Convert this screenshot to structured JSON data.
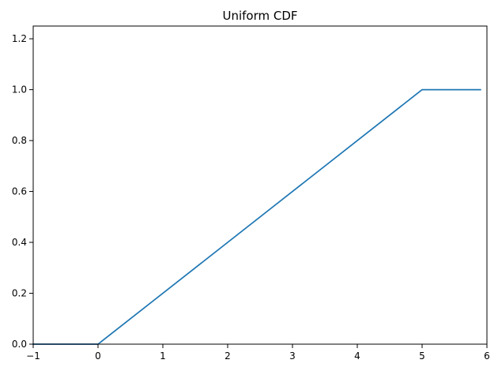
{
  "chart_data": {
    "type": "line",
    "title": "Uniform CDF",
    "xlabel": "",
    "ylabel": "",
    "xlim": [
      -1,
      6
    ],
    "ylim": [
      0,
      1.25
    ],
    "xticks": [
      -1,
      0,
      1,
      2,
      3,
      4,
      5,
      6
    ],
    "xtick_labels": [
      "−1",
      "0",
      "1",
      "2",
      "3",
      "4",
      "5",
      "6"
    ],
    "yticks": [
      0.0,
      0.2,
      0.4,
      0.6,
      0.8,
      1.0,
      1.2
    ],
    "ytick_labels": [
      "0.0",
      "0.2",
      "0.4",
      "0.6",
      "0.8",
      "1.0",
      "1.2"
    ],
    "grid": false,
    "legend": "none",
    "series": [
      {
        "color": "#1f77b4",
        "x": [
          -1,
          0,
          5,
          5.9
        ],
        "y": [
          0,
          0,
          1,
          1
        ]
      }
    ]
  }
}
